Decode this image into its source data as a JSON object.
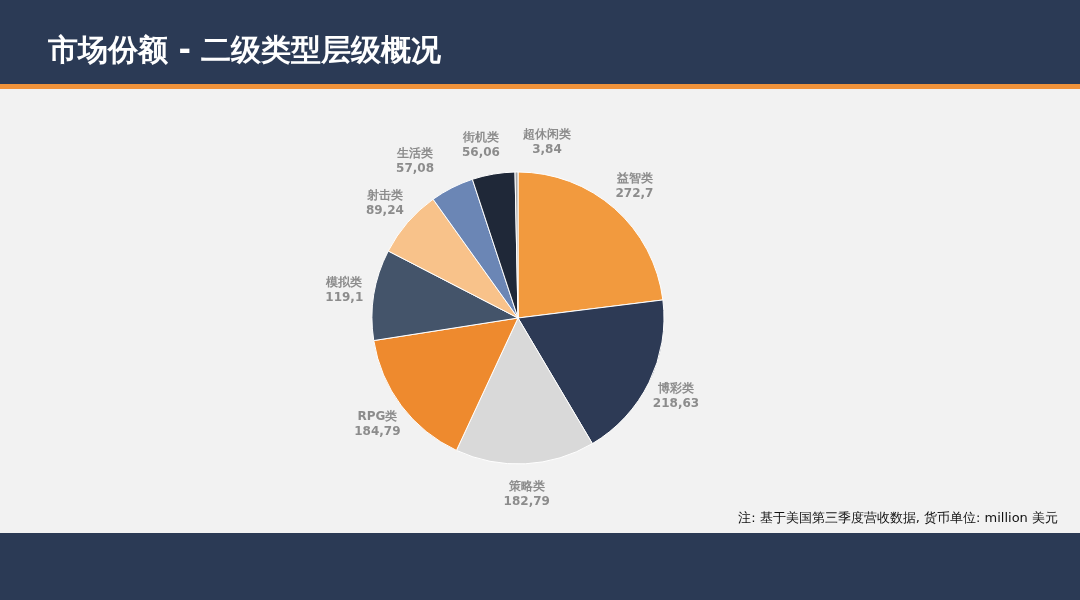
{
  "chart_data": {
    "type": "pie",
    "title": "市场份额 - 二级类型层级概况",
    "categories": [
      "益智类",
      "博彩类",
      "策略类",
      "RPG类",
      "模拟类",
      "射击类",
      "生活类",
      "街机类",
      "超休闲类"
    ],
    "values": [
      272.7,
      218.63,
      182.79,
      184.79,
      119.1,
      89.24,
      57.08,
      56.06,
      3.84
    ],
    "value_labels": [
      "272,7",
      "218,63",
      "182,79",
      "184,79",
      "119,1",
      "89,24",
      "57,08",
      "56,06",
      "3,84"
    ],
    "colors": [
      "#f29a3e",
      "#2d3a55",
      "#d9d9d9",
      "#ee8a2e",
      "#44546a",
      "#f8c28a",
      "#6b86b5",
      "#1f2838",
      "#a6a6a6"
    ],
    "annotations": [
      "注: 基于美国第三季度营收数据, 货币单位: million 美元"
    ]
  }
}
